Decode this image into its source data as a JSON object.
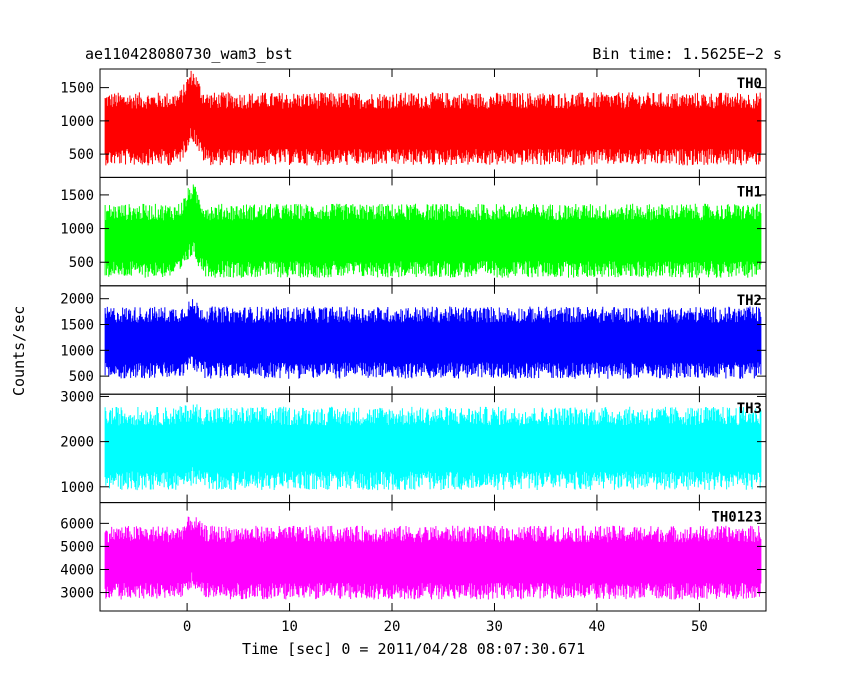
{
  "header": {
    "title_left": "ae110428080730_wam3_bst",
    "title_right": "Bin time: 1.5625E−2 s"
  },
  "chart_data": {
    "type": "line",
    "xlabel": "Time [sec] 0 = 2011/04/28 08:07:30.671",
    "ylabel": "Counts/sec",
    "xlim": [
      -8.5,
      56.5
    ],
    "x_ticks": [
      0,
      10,
      20,
      30,
      40,
      50
    ],
    "grid": false,
    "panels": [
      {
        "name": "TH0",
        "color": "#ff0000",
        "ylim": [
          150,
          1780
        ],
        "y_ticks": [
          500,
          1000,
          1500
        ],
        "baseline": 880,
        "low": 400,
        "high": 1500,
        "bump_at": 0.5,
        "bump_height": 350
      },
      {
        "name": "TH1",
        "color": "#00ff00",
        "ylim": [
          150,
          1760
        ],
        "y_ticks": [
          500,
          1000,
          1500
        ],
        "baseline": 820,
        "low": 350,
        "high": 1450,
        "bump_at": 0.5,
        "bump_height": 300
      },
      {
        "name": "TH2",
        "color": "#0000ff",
        "ylim": [
          150,
          2250
        ],
        "y_ticks": [
          500,
          1000,
          1500,
          2000
        ],
        "baseline": 1150,
        "low": 500,
        "high": 1900,
        "bump_at": 0.5,
        "bump_height": 150
      },
      {
        "name": "TH3",
        "color": "#00ffff",
        "ylim": [
          650,
          3050
        ],
        "y_ticks": [
          1000,
          2000,
          3000
        ],
        "baseline": 1850,
        "low": 950,
        "high": 2800,
        "bump_at": 0.5,
        "bump_height": 100
      },
      {
        "name": "TH0123",
        "color": "#ff00ff",
        "ylim": [
          2200,
          6900
        ],
        "y_ticks": [
          3000,
          4000,
          5000,
          6000
        ],
        "baseline": 4300,
        "low": 2800,
        "high": 6000,
        "bump_at": 0.5,
        "bump_height": 500
      }
    ]
  }
}
